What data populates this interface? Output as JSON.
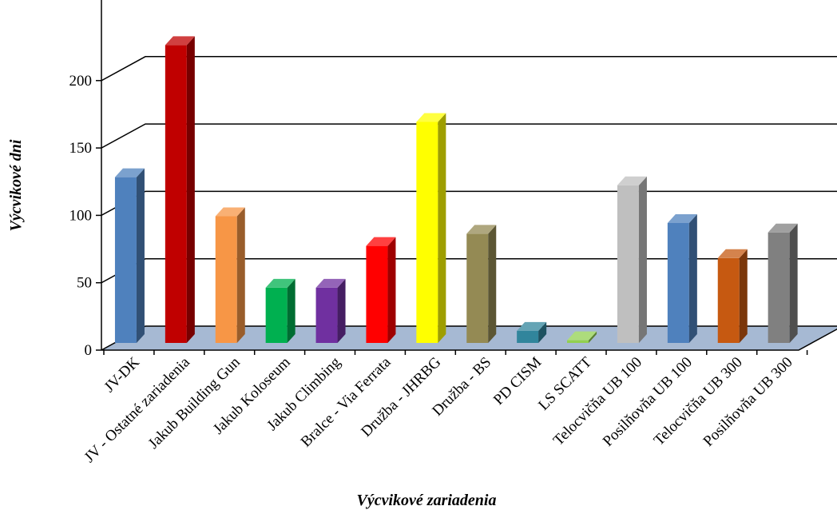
{
  "chart_data": {
    "type": "bar",
    "style": "3d-column",
    "xlabel": "Výcvikové zariadenia",
    "ylabel": "Výcvikové dni",
    "ylim": [
      0,
      250
    ],
    "yticks": [
      0,
      50,
      100,
      150,
      200
    ],
    "grid": true,
    "legend": "none",
    "categories": [
      "JV-DK",
      "JV - Ostatné zariadenia",
      "Jakub Building Gun",
      "Jakub Koloseum",
      "Jakub Climbing",
      "Bralce - Via Ferrata",
      "Družba - JHRBG",
      "Družba - BS",
      "PD CISM",
      "LS SCATT",
      "Telocvičňa UB 100",
      "Posilňovňa UB 100",
      "Telocvičňa UB 300",
      "Posilňovňa UB 300"
    ],
    "values": [
      123,
      221,
      94,
      41,
      41,
      72,
      164,
      81,
      9,
      2,
      117,
      89,
      63,
      82
    ],
    "colors": [
      "#4f81bd",
      "#c00000",
      "#f79646",
      "#00b050",
      "#7030a0",
      "#ff0000",
      "#ffff00",
      "#948a54",
      "#31859c",
      "#92d050",
      "#bfbfbf",
      "#4f81bd",
      "#c65911",
      "#808080"
    ]
  }
}
